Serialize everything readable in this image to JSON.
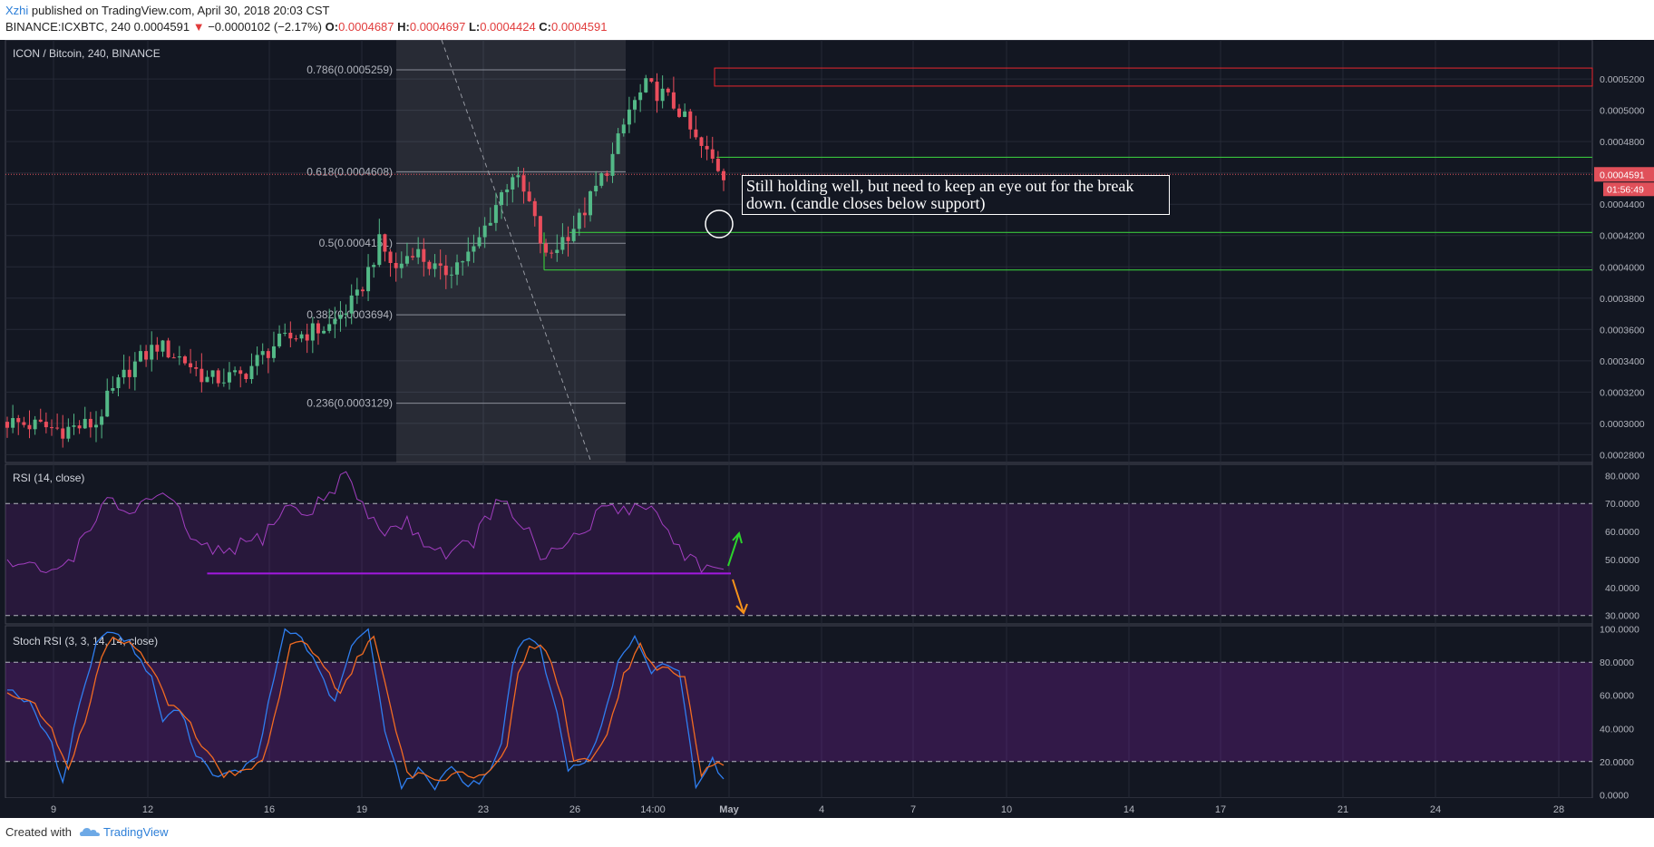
{
  "header": {
    "author": "Xzhi",
    "published": "published on TradingView.com, April 30, 2018 20:03 CST",
    "symbol_line": "BINANCE:ICXBTC, 240",
    "last": "0.0004591",
    "arrow": "▼",
    "change": "−0.0000102 (−2.17%)",
    "o_label": "O:",
    "o_value": "0.0004687",
    "h_label": "H:",
    "h_value": "0.0004697",
    "l_label": "L:",
    "l_value": "0.0004424",
    "c_label": "C:",
    "c_value": "0.0004591"
  },
  "footer": {
    "created_with": "Created with",
    "brand": "TradingView"
  },
  "chart_data": [
    {
      "type": "candlestick",
      "title": "ICON / Bitcoin, 240, BINANCE",
      "price_ticks": [
        "0.0005200",
        "0.0005000",
        "0.0004800",
        "0.0004600",
        "0.0004400",
        "0.0004200",
        "0.0004000",
        "0.0003800",
        "0.0003600",
        "0.0003400",
        "0.0003200",
        "0.0003000",
        "0.0002800"
      ],
      "price_tick_values": [
        0.00052,
        0.0005,
        0.00048,
        0.00046,
        0.00044,
        0.00042,
        0.0004,
        0.00038,
        0.00036,
        0.00034,
        0.00032,
        0.0003,
        0.00028
      ],
      "ylim": [
        0.000275,
        0.000545
      ],
      "last_price_label": "0.0004591",
      "last_price": 0.0004591,
      "countdown_label": "01:56:49",
      "x_tick_labels": [
        "9",
        "12",
        "16",
        "19",
        "23",
        "26",
        "14:00",
        "May",
        "4",
        "7",
        "10",
        "14",
        "17",
        "21",
        "24",
        "28"
      ],
      "fib_levels": [
        {
          "label": "0.786(0.0005259)",
          "value": 0.0005259
        },
        {
          "label": "0.618(0.0004608)",
          "value": 0.0004608
        },
        {
          "label": "0.5(0.0004151)",
          "value": 0.0004151
        },
        {
          "label": "0.382(0.0003694)",
          "value": 0.0003694
        },
        {
          "label": "0.236(0.0003129)",
          "value": 0.0003129
        }
      ],
      "resistance_zone": [
        0.0005155,
        0.000527
      ],
      "support_lines": [
        0.00047,
        0.000422,
        0.000398
      ],
      "candle_count": 130,
      "trend_waypoints": [
        [
          0,
          0.000301
        ],
        [
          10,
          0.000296
        ],
        [
          16,
          0.0003
        ],
        [
          18,
          0.000315
        ],
        [
          22,
          0.000335
        ],
        [
          27,
          0.00035
        ],
        [
          32,
          0.00034
        ],
        [
          36,
          0.000328
        ],
        [
          42,
          0.00033
        ],
        [
          48,
          0.00035
        ],
        [
          52,
          0.000356
        ],
        [
          58,
          0.000362
        ],
        [
          63,
          0.00038
        ],
        [
          67,
          0.000415
        ],
        [
          70,
          0.000398
        ],
        [
          73,
          0.000412
        ],
        [
          78,
          0.000395
        ],
        [
          84,
          0.00041
        ],
        [
          88,
          0.00044
        ],
        [
          91,
          0.00046
        ],
        [
          94,
          0.00044
        ],
        [
          97,
          0.000405
        ],
        [
          100,
          0.000418
        ],
        [
          103,
          0.00043
        ],
        [
          106,
          0.00045
        ],
        [
          109,
          0.00047
        ],
        [
          112,
          0.0005
        ],
        [
          115,
          0.000515
        ],
        [
          118,
          0.00051
        ],
        [
          121,
          0.0005
        ],
        [
          124,
          0.00048
        ],
        [
          127,
          0.000468
        ],
        [
          129,
          0.000459
        ]
      ],
      "annotation": "Still holding well, but need to keep an eye out for the break down. (candle closes below support)"
    },
    {
      "type": "line",
      "title": "RSI (14, close)",
      "ticks": [
        "80.0000",
        "70.0000",
        "60.0000",
        "50.0000",
        "40.0000",
        "30.0000"
      ],
      "tick_values": [
        80,
        70,
        60,
        50,
        40,
        30
      ],
      "ylim": [
        27,
        84
      ],
      "band": [
        30,
        70
      ],
      "support_level": 45,
      "support_from_index": 36,
      "waypoints": [
        [
          0,
          49
        ],
        [
          4,
          47
        ],
        [
          8,
          45
        ],
        [
          12,
          52
        ],
        [
          16,
          66
        ],
        [
          18,
          70
        ],
        [
          22,
          67
        ],
        [
          26,
          72
        ],
        [
          30,
          70
        ],
        [
          34,
          55
        ],
        [
          38,
          52
        ],
        [
          42,
          55
        ],
        [
          46,
          58
        ],
        [
          50,
          69
        ],
        [
          54,
          66
        ],
        [
          58,
          74
        ],
        [
          61,
          81
        ],
        [
          64,
          68
        ],
        [
          68,
          60
        ],
        [
          72,
          63
        ],
        [
          76,
          55
        ],
        [
          80,
          52
        ],
        [
          84,
          57
        ],
        [
          88,
          70
        ],
        [
          90,
          68
        ],
        [
          94,
          60
        ],
        [
          96,
          48
        ],
        [
          100,
          55
        ],
        [
          104,
          60
        ],
        [
          108,
          70
        ],
        [
          112,
          68
        ],
        [
          116,
          70
        ],
        [
          118,
          62
        ],
        [
          122,
          52
        ],
        [
          126,
          47
        ],
        [
          129,
          44
        ]
      ]
    },
    {
      "type": "line",
      "title": "Stoch RSI (3, 3, 14, 14, close)",
      "ticks": [
        "100.0000",
        "80.0000",
        "60.0000",
        "40.0000",
        "20.0000",
        "0.0000"
      ],
      "tick_values": [
        100,
        80,
        60,
        40,
        20,
        0
      ],
      "ylim": [
        -2,
        102
      ],
      "band": [
        20,
        80
      ],
      "series": [
        {
          "color": "#2f7ef0",
          "waypoints": [
            [
              0,
              65
            ],
            [
              4,
              55
            ],
            [
              8,
              30
            ],
            [
              10,
              8
            ],
            [
              13,
              55
            ],
            [
              16,
              90
            ],
            [
              18,
              100
            ],
            [
              22,
              92
            ],
            [
              26,
              70
            ],
            [
              28,
              45
            ],
            [
              31,
              52
            ],
            [
              34,
              25
            ],
            [
              38,
              10
            ],
            [
              42,
              15
            ],
            [
              45,
              22
            ],
            [
              48,
              70
            ],
            [
              50,
              100
            ],
            [
              53,
              95
            ],
            [
              56,
              75
            ],
            [
              59,
              55
            ],
            [
              62,
              90
            ],
            [
              65,
              100
            ],
            [
              68,
              40
            ],
            [
              71,
              5
            ],
            [
              74,
              15
            ],
            [
              77,
              5
            ],
            [
              80,
              18
            ],
            [
              83,
              5
            ],
            [
              86,
              10
            ],
            [
              89,
              30
            ],
            [
              91,
              80
            ],
            [
              93,
              95
            ],
            [
              96,
              88
            ],
            [
              99,
              48
            ],
            [
              101,
              15
            ],
            [
              104,
              20
            ],
            [
              107,
              40
            ],
            [
              110,
              80
            ],
            [
              113,
              95
            ],
            [
              116,
              72
            ],
            [
              118,
              80
            ],
            [
              121,
              75
            ],
            [
              124,
              6
            ],
            [
              127,
              22
            ],
            [
              129,
              8
            ]
          ]
        },
        {
          "color": "#f26b21",
          "waypoints": [
            [
              0,
              60
            ],
            [
              4,
              58
            ],
            [
              8,
              40
            ],
            [
              11,
              14
            ],
            [
              14,
              45
            ],
            [
              17,
              85
            ],
            [
              19,
              95
            ],
            [
              23,
              90
            ],
            [
              27,
              72
            ],
            [
              29,
              55
            ],
            [
              32,
              48
            ],
            [
              35,
              30
            ],
            [
              39,
              12
            ],
            [
              43,
              14
            ],
            [
              46,
              20
            ],
            [
              49,
              60
            ],
            [
              51,
              92
            ],
            [
              54,
              92
            ],
            [
              57,
              78
            ],
            [
              60,
              60
            ],
            [
              63,
              82
            ],
            [
              66,
              96
            ],
            [
              69,
              52
            ],
            [
              72,
              12
            ],
            [
              75,
              12
            ],
            [
              78,
              9
            ],
            [
              81,
              14
            ],
            [
              84,
              10
            ],
            [
              87,
              14
            ],
            [
              90,
              30
            ],
            [
              92,
              72
            ],
            [
              94,
              90
            ],
            [
              97,
              88
            ],
            [
              100,
              58
            ],
            [
              102,
              20
            ],
            [
              105,
              20
            ],
            [
              108,
              36
            ],
            [
              111,
              72
            ],
            [
              114,
              90
            ],
            [
              117,
              76
            ],
            [
              119,
              76
            ],
            [
              122,
              70
            ],
            [
              125,
              12
            ],
            [
              128,
              20
            ],
            [
              129,
              18
            ]
          ]
        }
      ]
    }
  ]
}
